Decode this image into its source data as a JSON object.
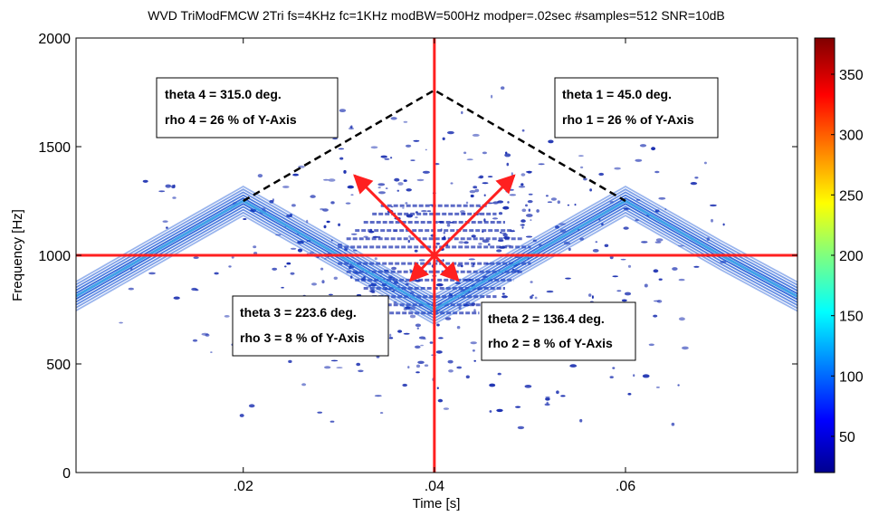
{
  "chart_data": {
    "type": "heatmap",
    "title": "WVD TriModFMCW 2Tri fs=4KHz fc=1KHz modBW=500Hz modper=.02sec #samples=512 SNR=10dB",
    "xlabel": "Time [s]",
    "ylabel": "Frequency [Hz]",
    "xlim": [
      0.0025,
      0.078
    ],
    "ylim": [
      0,
      2000
    ],
    "xticks": [
      0.02,
      0.04,
      0.06
    ],
    "xtick_labels": [
      ".02",
      ".04",
      ".06"
    ],
    "yticks": [
      0,
      500,
      1000,
      1500,
      2000
    ],
    "ytick_labels": [
      "0",
      "500",
      "1000",
      "1500",
      "2000"
    ],
    "colorbar": {
      "range": [
        20,
        380
      ],
      "ticks": [
        50,
        100,
        150,
        200,
        250,
        300,
        350
      ],
      "tick_labels": [
        "50",
        "100",
        "150",
        "200",
        "250",
        "300",
        "350"
      ],
      "colormap": "jet"
    },
    "signal_ridge": {
      "x": [
        0.0025,
        0.01,
        0.02,
        0.03,
        0.04,
        0.05,
        0.06,
        0.07,
        0.078
      ],
      "y": [
        812,
        1000,
        1250,
        1000,
        750,
        1000,
        1250,
        1000,
        810
      ]
    },
    "center": {
      "x": 0.04,
      "y": 1000
    },
    "dashed_triangle": {
      "x": [
        0.02,
        0.04,
        0.06
      ],
      "y": [
        1250,
        1760,
        1250
      ]
    },
    "vectors": [
      {
        "theta_deg": 45.0,
        "rho_pct": 26
      },
      {
        "theta_deg": 136.4,
        "rho_pct": 8
      },
      {
        "theta_deg": 223.6,
        "rho_pct": 8
      },
      {
        "theta_deg": 315.0,
        "rho_pct": 26
      }
    ],
    "annotations": [
      {
        "id": "a4",
        "line1": "theta 4 = 315.0 deg.",
        "line2": "rho 4 = 26 % of Y-Axis"
      },
      {
        "id": "a1",
        "line1": "theta 1 = 45.0 deg.",
        "line2": "rho 1 = 26 % of Y-Axis"
      },
      {
        "id": "a3",
        "line1": "theta 3 = 223.6 deg.",
        "line2": "rho 3 = 8 % of Y-Axis"
      },
      {
        "id": "a2",
        "line1": "theta 2 = 136.4 deg.",
        "line2": "rho 2 = 8 % of Y-Axis"
      }
    ],
    "colors": {
      "crosshair": "#ff2020",
      "triangle": "#000000",
      "ridge": "#1e5ad6",
      "ridge_inner": "#3fa0e8",
      "clutter": "#1a2fb0"
    }
  }
}
